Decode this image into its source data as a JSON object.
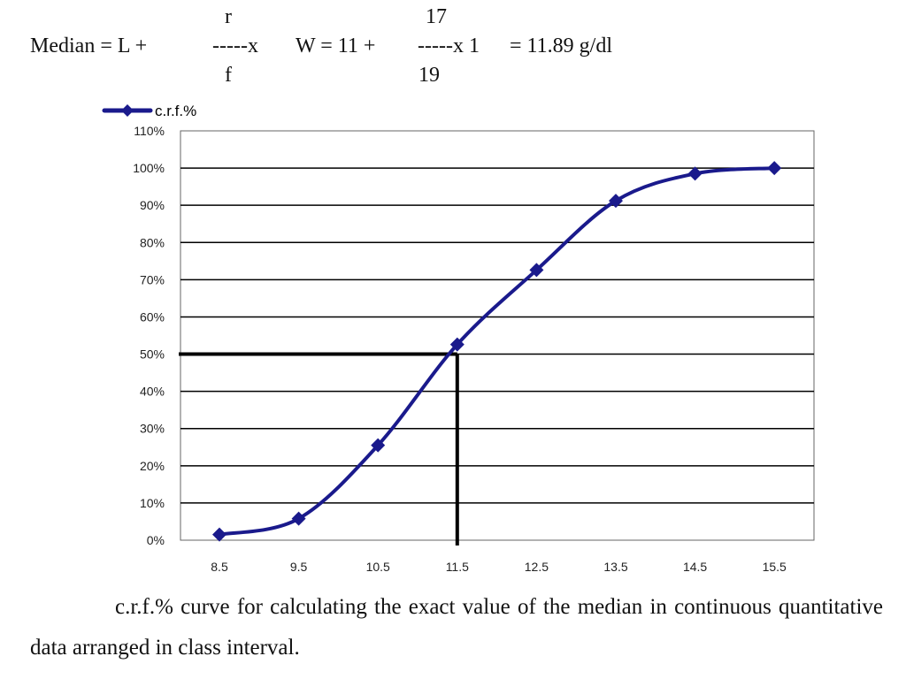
{
  "formula": {
    "lhs": "Median = L +",
    "r": "r",
    "f": "f",
    "dashes_x_1": "-----x",
    "w_part": "W = 11 +",
    "num": "17",
    "den": "19",
    "dashes_x_2": "-----x 1",
    "result": "= 11.89 g/dl"
  },
  "chart_data": {
    "type": "line",
    "legend": "c.r.f.%",
    "legend_position": "top-left",
    "color": "#1a1a8c",
    "grid": "horizontal",
    "x": [
      "8.5",
      "9.5",
      "10.5",
      "11.5",
      "12.5",
      "13.5",
      "14.5",
      "15.5"
    ],
    "series": [
      {
        "name": "c.r.f.%",
        "values": [
          1.5,
          5.8,
          25.5,
          52.6,
          72.6,
          91.2,
          98.5,
          100
        ]
      }
    ],
    "ylim": [
      0,
      110
    ],
    "y_ticks": [
      "0%",
      "10%",
      "20%",
      "30%",
      "40%",
      "50%",
      "60%",
      "70%",
      "80%",
      "90%",
      "100%",
      "110%"
    ],
    "median_line": {
      "x": 11.5,
      "y": 50
    }
  },
  "caption": "c.r.f.% curve for calculating the exact value of the median in continuous quantitative data arranged in class interval."
}
